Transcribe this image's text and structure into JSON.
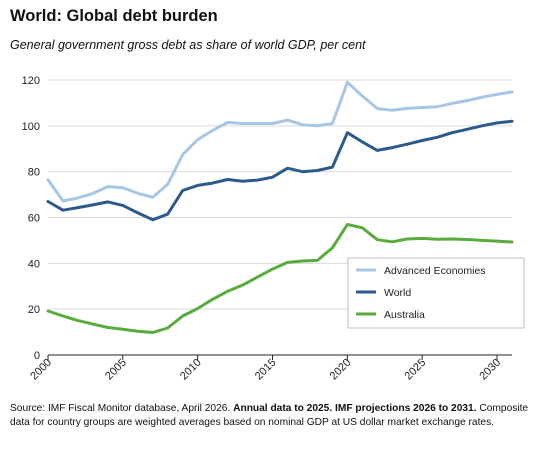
{
  "header": {
    "title": "World: Global debt burden",
    "subtitle": "General government gross debt as share of world GDP, per cent"
  },
  "footer": {
    "source_plain": "Source: IMF Fiscal Monitor database, April 2026.",
    "source_bold": "Annual data to 2025. IMF projections 2026 to 2031.",
    "note": "Composite data for country groups are weighted averages based on nominal GDP at US dollar market exchange rates."
  },
  "chart_data": {
    "type": "line",
    "title": "World: Global debt burden",
    "subtitle": "General government gross debt as share of world GDP, per cent",
    "x": [
      2000,
      2001,
      2002,
      2003,
      2004,
      2005,
      2006,
      2007,
      2008,
      2009,
      2010,
      2011,
      2012,
      2013,
      2014,
      2015,
      2016,
      2017,
      2018,
      2019,
      2020,
      2021,
      2022,
      2023,
      2024,
      2025,
      2026,
      2027,
      2028,
      2029,
      2030,
      2031
    ],
    "xticks": [
      "2000",
      "2005",
      "2010",
      "2015",
      "2020",
      "2025",
      "2030"
    ],
    "xlim": [
      2000,
      2031
    ],
    "ylim": [
      0,
      120
    ],
    "yticks": [
      "0",
      "20",
      "40",
      "60",
      "80",
      "100",
      "120"
    ],
    "grid": "horizontal",
    "legend_position": "bottom-right",
    "series": [
      {
        "name": "Advanced Economies",
        "color": "#a7c6e5",
        "values": [
          76.5,
          67.2,
          68.5,
          70.5,
          73.5,
          73.0,
          70.5,
          68.8,
          74.5,
          87.5,
          94.0,
          98.0,
          101.5,
          101.0,
          101.0,
          101.0,
          102.5,
          100.5,
          100.0,
          101.0,
          119.0,
          113.0,
          107.5,
          106.8,
          107.6,
          108.0,
          108.3,
          109.8,
          111.0,
          112.5,
          113.7,
          114.8
        ]
      },
      {
        "name": "World",
        "color": "#2c5a8c",
        "values": [
          67.0,
          63.2,
          64.3,
          65.5,
          66.8,
          65.3,
          62.0,
          59.0,
          61.5,
          71.8,
          74.0,
          75.0,
          76.6,
          75.8,
          76.3,
          77.6,
          81.5,
          80.0,
          80.5,
          82.0,
          97.0,
          93.0,
          89.3,
          90.5,
          92.0,
          93.6,
          95.0,
          97.0,
          98.5,
          100.0,
          101.3,
          102.0
        ]
      },
      {
        "name": "Australia",
        "color": "#5aab3e",
        "values": [
          19.2,
          17.0,
          15.0,
          13.5,
          12.0,
          11.2,
          10.4,
          9.8,
          11.8,
          17.0,
          20.3,
          24.3,
          27.8,
          30.5,
          34.0,
          37.5,
          40.4,
          41.0,
          41.3,
          46.8,
          57.0,
          55.5,
          50.3,
          49.4,
          50.6,
          50.9,
          50.5,
          50.6,
          50.4,
          50.0,
          49.7,
          49.3
        ]
      }
    ]
  }
}
